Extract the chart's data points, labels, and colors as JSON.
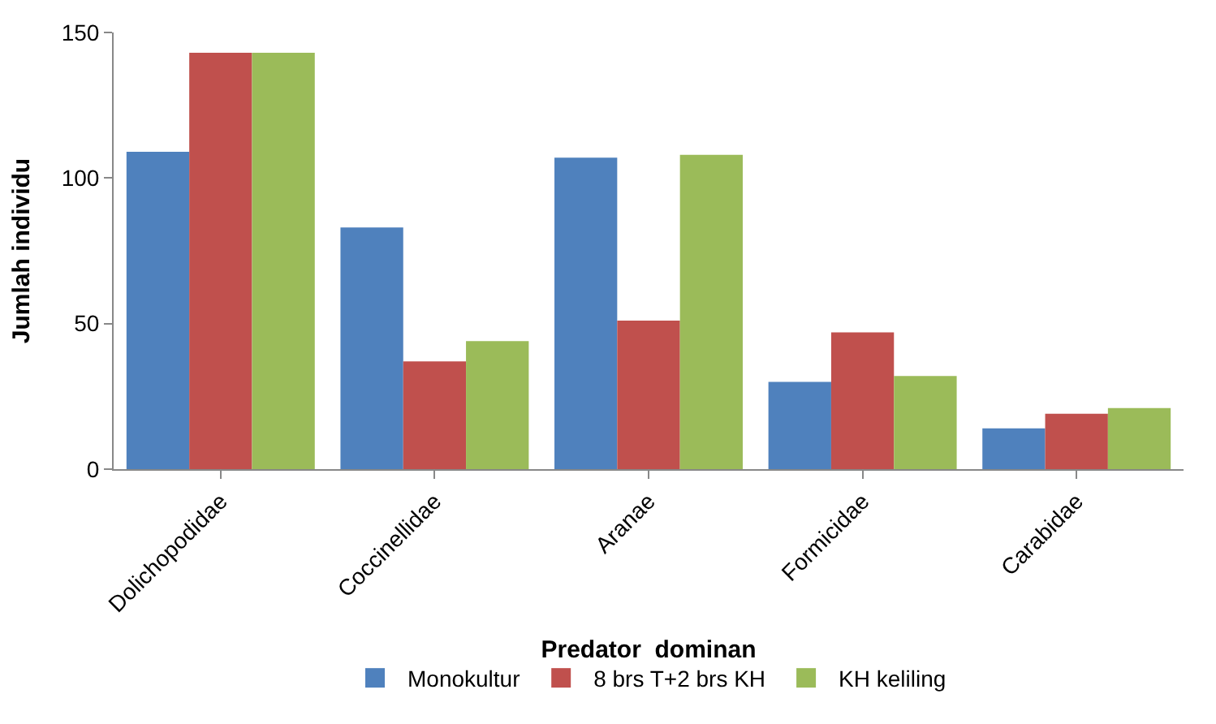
{
  "chart_data": {
    "type": "bar",
    "xlabel": "Predator  dominan",
    "ylabel": "Jumlah individu",
    "categories": [
      "Dolichopodidae",
      "Coccinellidae",
      "Aranae",
      "Formicidae",
      "Carabidae"
    ],
    "series": [
      {
        "name": "Monokultur",
        "color": "#4f81bd",
        "values": [
          109,
          83,
          107,
          30,
          14
        ]
      },
      {
        "name": "8 brs T+2 brs KH",
        "color": "#c0504d",
        "values": [
          143,
          37,
          51,
          47,
          19
        ]
      },
      {
        "name": "KH keliling",
        "color": "#9bbb59",
        "values": [
          143,
          44,
          108,
          32,
          21
        ]
      }
    ],
    "ylim": [
      0,
      150
    ],
    "yticks": [
      0,
      50,
      100,
      150
    ],
    "grid": false,
    "legend": "bottom"
  }
}
